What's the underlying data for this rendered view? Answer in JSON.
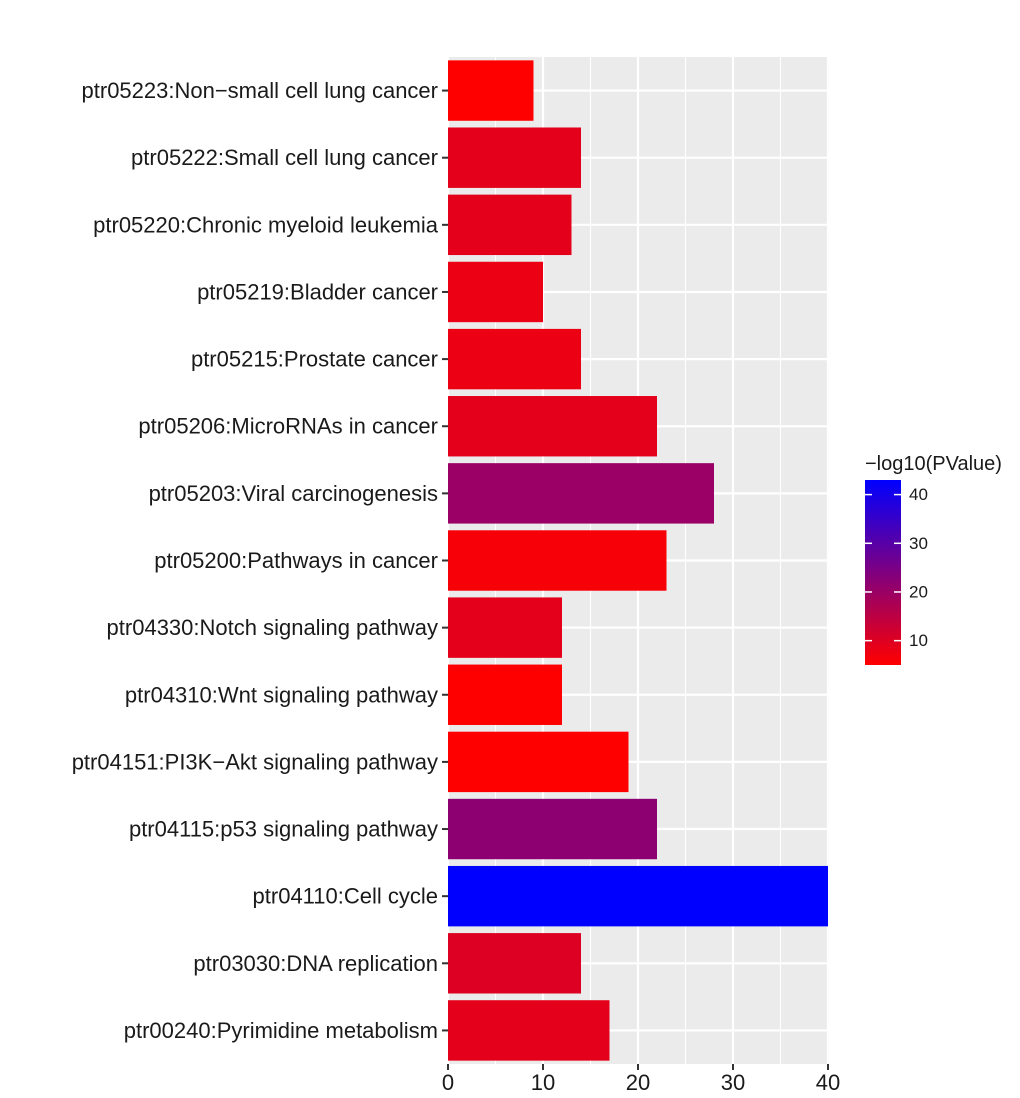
{
  "chart_data": {
    "type": "bar",
    "orientation": "horizontal",
    "categories": [
      "ptr05223:Non−small cell lung cancer",
      "ptr05222:Small cell lung cancer",
      "ptr05220:Chronic myeloid leukemia",
      "ptr05219:Bladder cancer",
      "ptr05215:Prostate cancer",
      "ptr05206:MicroRNAs in cancer",
      "ptr05203:Viral carcinogenesis",
      "ptr05200:Pathways in cancer",
      "ptr04330:Notch signaling pathway",
      "ptr04310:Wnt signaling pathway",
      "ptr04151:PI3K−Akt signaling pathway",
      "ptr04115:p53 signaling pathway",
      "ptr04110:Cell cycle",
      "ptr03030:DNA replication",
      "ptr00240:Pyrimidine metabolism"
    ],
    "values": [
      9,
      14,
      13,
      10,
      14,
      22,
      28,
      23,
      12,
      12,
      19,
      22,
      40,
      14,
      17
    ],
    "color_values": [
      5,
      9,
      9,
      8,
      8,
      9,
      20,
      6,
      9,
      5,
      5,
      22,
      43,
      10,
      9
    ],
    "xlim": [
      0,
      40
    ],
    "xticks": [
      0,
      10,
      20,
      30,
      40
    ],
    "title": "",
    "xlabel": "",
    "ylabel": "",
    "grid": true,
    "legend": {
      "title": "−log10(PValue)",
      "placement": "right",
      "range": [
        5,
        43
      ],
      "ticks": [
        10,
        20,
        30,
        40
      ],
      "color_low": "#ff0000",
      "color_high": "#0000ff"
    }
  }
}
